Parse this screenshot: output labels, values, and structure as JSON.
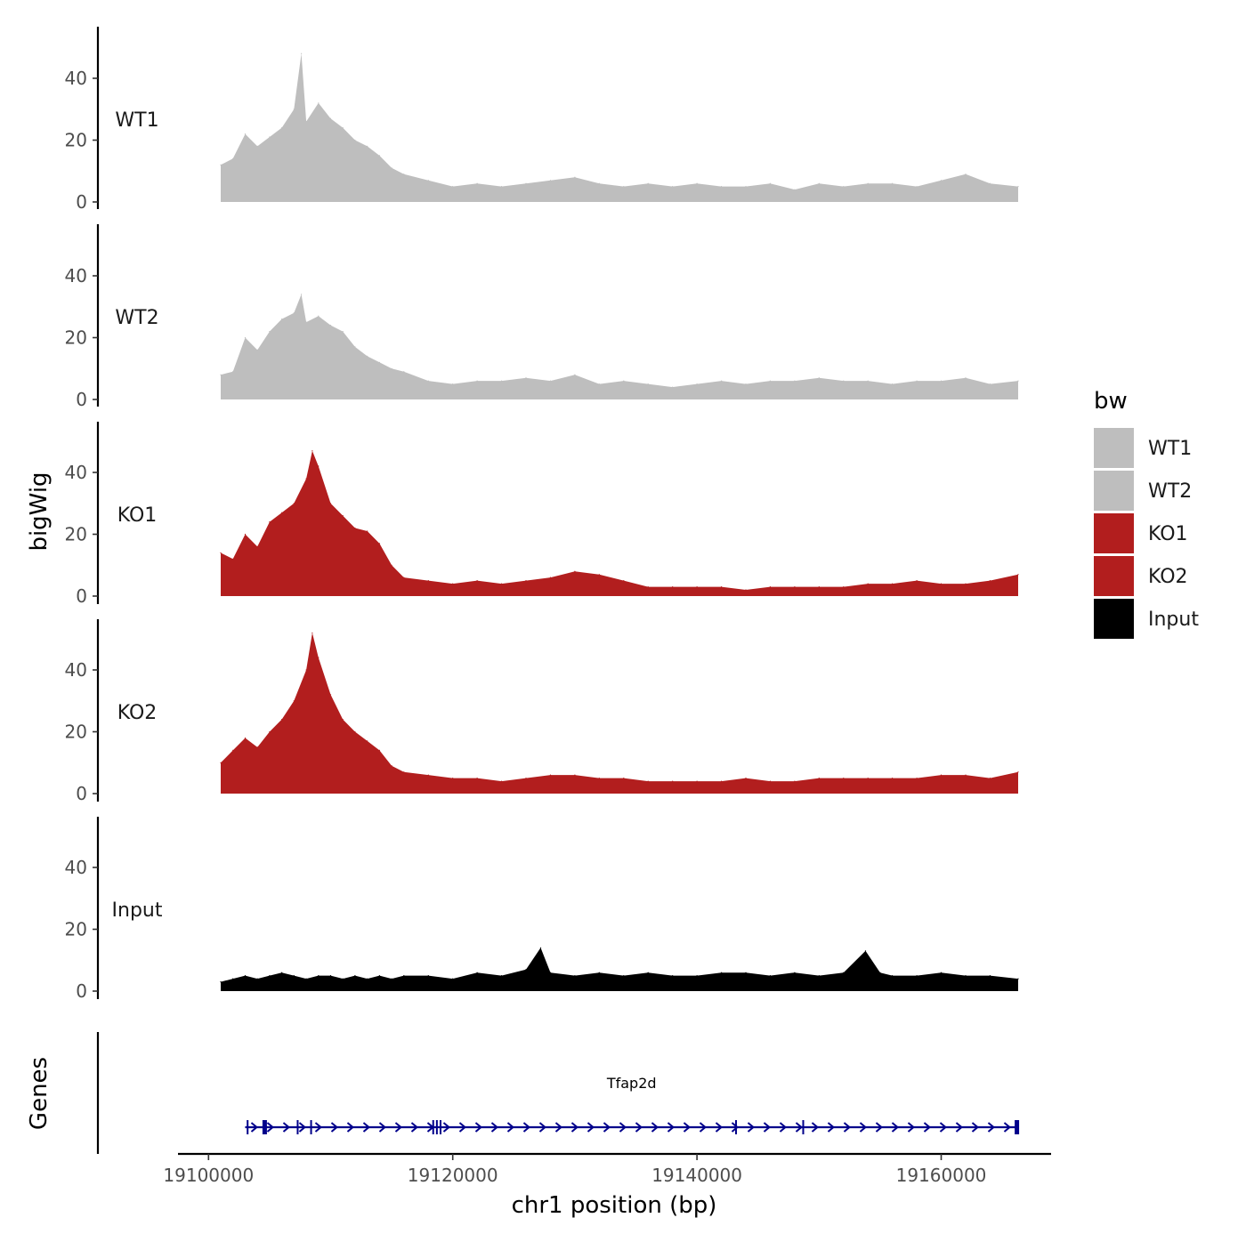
{
  "chart_data": {
    "type": "area",
    "title": "",
    "xlabel": "chr1 position (bp)",
    "ylabel": "bigWig",
    "gene_panel_label": "Genes",
    "xlim": [
      19097500,
      19169000
    ],
    "x_ticks": [
      19100000,
      19120000,
      19140000,
      19160000
    ],
    "x_tick_labels": [
      "19100000",
      "19120000",
      "19140000",
      "19160000"
    ],
    "ylim": [
      0,
      55
    ],
    "y_ticks": [
      0,
      20,
      40
    ],
    "y_tick_labels": [
      "0",
      "20",
      "40"
    ],
    "legend": {
      "title": "bw",
      "placement": "right",
      "entries": [
        {
          "label": "WT1",
          "color": "#BEBEBE"
        },
        {
          "label": "WT2",
          "color": "#BEBEBE"
        },
        {
          "label": "KO1",
          "color": "#B21E1E"
        },
        {
          "label": "KO2",
          "color": "#B21E1E"
        },
        {
          "label": "Input",
          "color": "#000000"
        }
      ]
    },
    "series": [
      {
        "name": "WT1",
        "color": "#BEBEBE",
        "x": [
          19101000,
          19102000,
          19103000,
          19104000,
          19105000,
          19106000,
          19107000,
          19107600,
          19108000,
          19109000,
          19110000,
          19111000,
          19112000,
          19113000,
          19114000,
          19115000,
          19116000,
          19118000,
          19120000,
          19122000,
          19124000,
          19126000,
          19128000,
          19130000,
          19132000,
          19134000,
          19136000,
          19138000,
          19140000,
          19142000,
          19144000,
          19146000,
          19148000,
          19150000,
          19152000,
          19154000,
          19156000,
          19158000,
          19160000,
          19162000,
          19164000,
          19166300
        ],
        "values": [
          12,
          14,
          22,
          18,
          21,
          24,
          30,
          48,
          26,
          32,
          27,
          24,
          20,
          18,
          15,
          11,
          9,
          7,
          5,
          6,
          5,
          6,
          7,
          8,
          6,
          5,
          6,
          5,
          6,
          5,
          5,
          6,
          4,
          6,
          5,
          6,
          6,
          5,
          7,
          9,
          6,
          5
        ]
      },
      {
        "name": "WT2",
        "color": "#BEBEBE",
        "x": [
          19101000,
          19102000,
          19103000,
          19104000,
          19105000,
          19106000,
          19107000,
          19107600,
          19108000,
          19109000,
          19110000,
          19111000,
          19112000,
          19113000,
          19114000,
          19115000,
          19116000,
          19118000,
          19120000,
          19122000,
          19124000,
          19126000,
          19128000,
          19130000,
          19132000,
          19134000,
          19136000,
          19138000,
          19140000,
          19142000,
          19144000,
          19146000,
          19148000,
          19150000,
          19152000,
          19154000,
          19156000,
          19158000,
          19160000,
          19162000,
          19164000,
          19166300
        ],
        "values": [
          8,
          9,
          20,
          16,
          22,
          26,
          28,
          34,
          25,
          27,
          24,
          22,
          17,
          14,
          12,
          10,
          9,
          6,
          5,
          6,
          6,
          7,
          6,
          8,
          5,
          6,
          5,
          4,
          5,
          6,
          5,
          6,
          6,
          7,
          6,
          6,
          5,
          6,
          6,
          7,
          5,
          6
        ]
      },
      {
        "name": "KO1",
        "color": "#B21E1E",
        "x": [
          19101000,
          19102000,
          19103000,
          19104000,
          19105000,
          19106000,
          19107000,
          19108000,
          19108500,
          19109000,
          19110000,
          19111000,
          19112000,
          19113000,
          19114000,
          19115000,
          19116000,
          19118000,
          19120000,
          19122000,
          19124000,
          19126000,
          19128000,
          19130000,
          19132000,
          19134000,
          19136000,
          19138000,
          19140000,
          19142000,
          19144000,
          19146000,
          19148000,
          19150000,
          19152000,
          19154000,
          19156000,
          19158000,
          19160000,
          19162000,
          19164000,
          19166300
        ],
        "values": [
          14,
          12,
          20,
          16,
          24,
          27,
          30,
          38,
          47,
          42,
          30,
          26,
          22,
          21,
          17,
          10,
          6,
          5,
          4,
          5,
          4,
          5,
          6,
          8,
          7,
          5,
          3,
          3,
          3,
          3,
          2,
          3,
          3,
          3,
          3,
          4,
          4,
          5,
          4,
          4,
          5,
          7
        ]
      },
      {
        "name": "KO2",
        "color": "#B21E1E",
        "x": [
          19101000,
          19102000,
          19103000,
          19104000,
          19105000,
          19106000,
          19107000,
          19108000,
          19108500,
          19109000,
          19110000,
          19111000,
          19112000,
          19113000,
          19114000,
          19115000,
          19116000,
          19118000,
          19120000,
          19122000,
          19124000,
          19126000,
          19128000,
          19130000,
          19132000,
          19134000,
          19136000,
          19138000,
          19140000,
          19142000,
          19144000,
          19146000,
          19148000,
          19150000,
          19152000,
          19154000,
          19156000,
          19158000,
          19160000,
          19162000,
          19164000,
          19166300
        ],
        "values": [
          10,
          14,
          18,
          15,
          20,
          24,
          30,
          40,
          52,
          44,
          32,
          24,
          20,
          17,
          14,
          9,
          7,
          6,
          5,
          5,
          4,
          5,
          6,
          6,
          5,
          5,
          4,
          4,
          4,
          4,
          5,
          4,
          4,
          5,
          5,
          5,
          5,
          5,
          6,
          6,
          5,
          7
        ]
      },
      {
        "name": "Input",
        "color": "#000000",
        "x": [
          19101000,
          19102000,
          19103000,
          19104000,
          19105000,
          19106000,
          19107000,
          19108000,
          19109000,
          19110000,
          19111000,
          19112000,
          19113000,
          19114000,
          19115000,
          19116000,
          19118000,
          19120000,
          19122000,
          19124000,
          19126000,
          19127200,
          19128000,
          19130000,
          19132000,
          19134000,
          19136000,
          19138000,
          19140000,
          19142000,
          19144000,
          19146000,
          19148000,
          19150000,
          19152000,
          19153800,
          19155000,
          19156000,
          19158000,
          19160000,
          19162000,
          19164000,
          19166300
        ],
        "values": [
          3,
          4,
          5,
          4,
          5,
          6,
          5,
          4,
          5,
          5,
          4,
          5,
          4,
          5,
          4,
          5,
          5,
          4,
          6,
          5,
          7,
          14,
          6,
          5,
          6,
          5,
          6,
          5,
          5,
          6,
          6,
          5,
          6,
          5,
          6,
          13,
          6,
          5,
          5,
          6,
          5,
          5,
          4
        ]
      }
    ],
    "gene_track": {
      "gene_name": "Tfap2d",
      "strand": "+",
      "color": "#00008B",
      "start": 19103000,
      "end": 19166300,
      "exons": [
        19103200,
        19104600,
        19107300,
        19108400,
        19118400,
        19118700,
        19119000,
        19143200,
        19148700,
        19166200
      ]
    }
  }
}
